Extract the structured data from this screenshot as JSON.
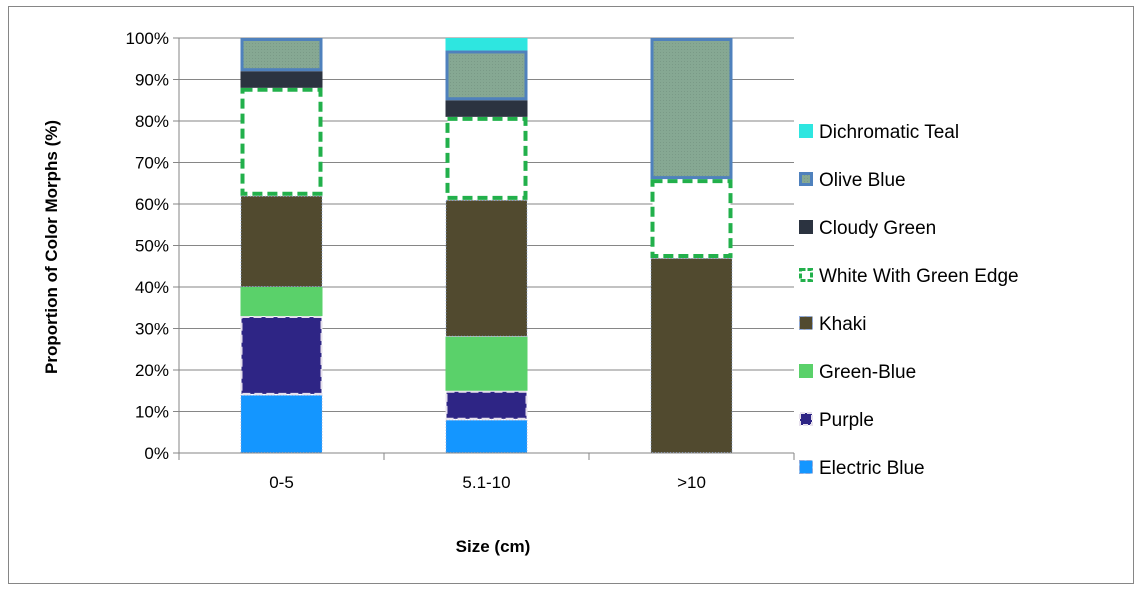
{
  "chart_data": {
    "type": "bar",
    "stacked": true,
    "normalized": true,
    "categories": [
      "0-5",
      "5.1-10",
      ">10"
    ],
    "xlabel": "Size (cm)",
    "ylabel": "Proportion of Color Morphs (%)",
    "ylim": [
      0,
      100
    ],
    "yticks": [
      "0%",
      "10%",
      "20%",
      "30%",
      "40%",
      "50%",
      "60%",
      "70%",
      "80%",
      "90%",
      "100%"
    ],
    "grid": true,
    "legend_position": "right",
    "series": [
      {
        "name": "Electric Blue",
        "values": [
          14,
          8,
          0
        ],
        "color": "#1496ff"
      },
      {
        "name": "Purple",
        "values": [
          19,
          7,
          0
        ],
        "color": "#2e2585"
      },
      {
        "name": "Green-Blue",
        "values": [
          7,
          13,
          0
        ],
        "color": "#5ad16a"
      },
      {
        "name": "Khaki",
        "values": [
          22,
          33,
          47
        ],
        "color": "#514a2f"
      },
      {
        "name": "White With Green Edge",
        "values": [
          26,
          20,
          19
        ],
        "color": "#ffffff"
      },
      {
        "name": "Cloudy Green",
        "values": [
          4,
          4,
          0
        ],
        "color": "#2b3340"
      },
      {
        "name": "Olive Blue",
        "values": [
          8,
          12,
          34
        ],
        "color": "#86a893"
      },
      {
        "name": "Dichromatic Teal",
        "values": [
          0,
          3,
          0
        ],
        "color": "#2ee6e0"
      }
    ]
  }
}
